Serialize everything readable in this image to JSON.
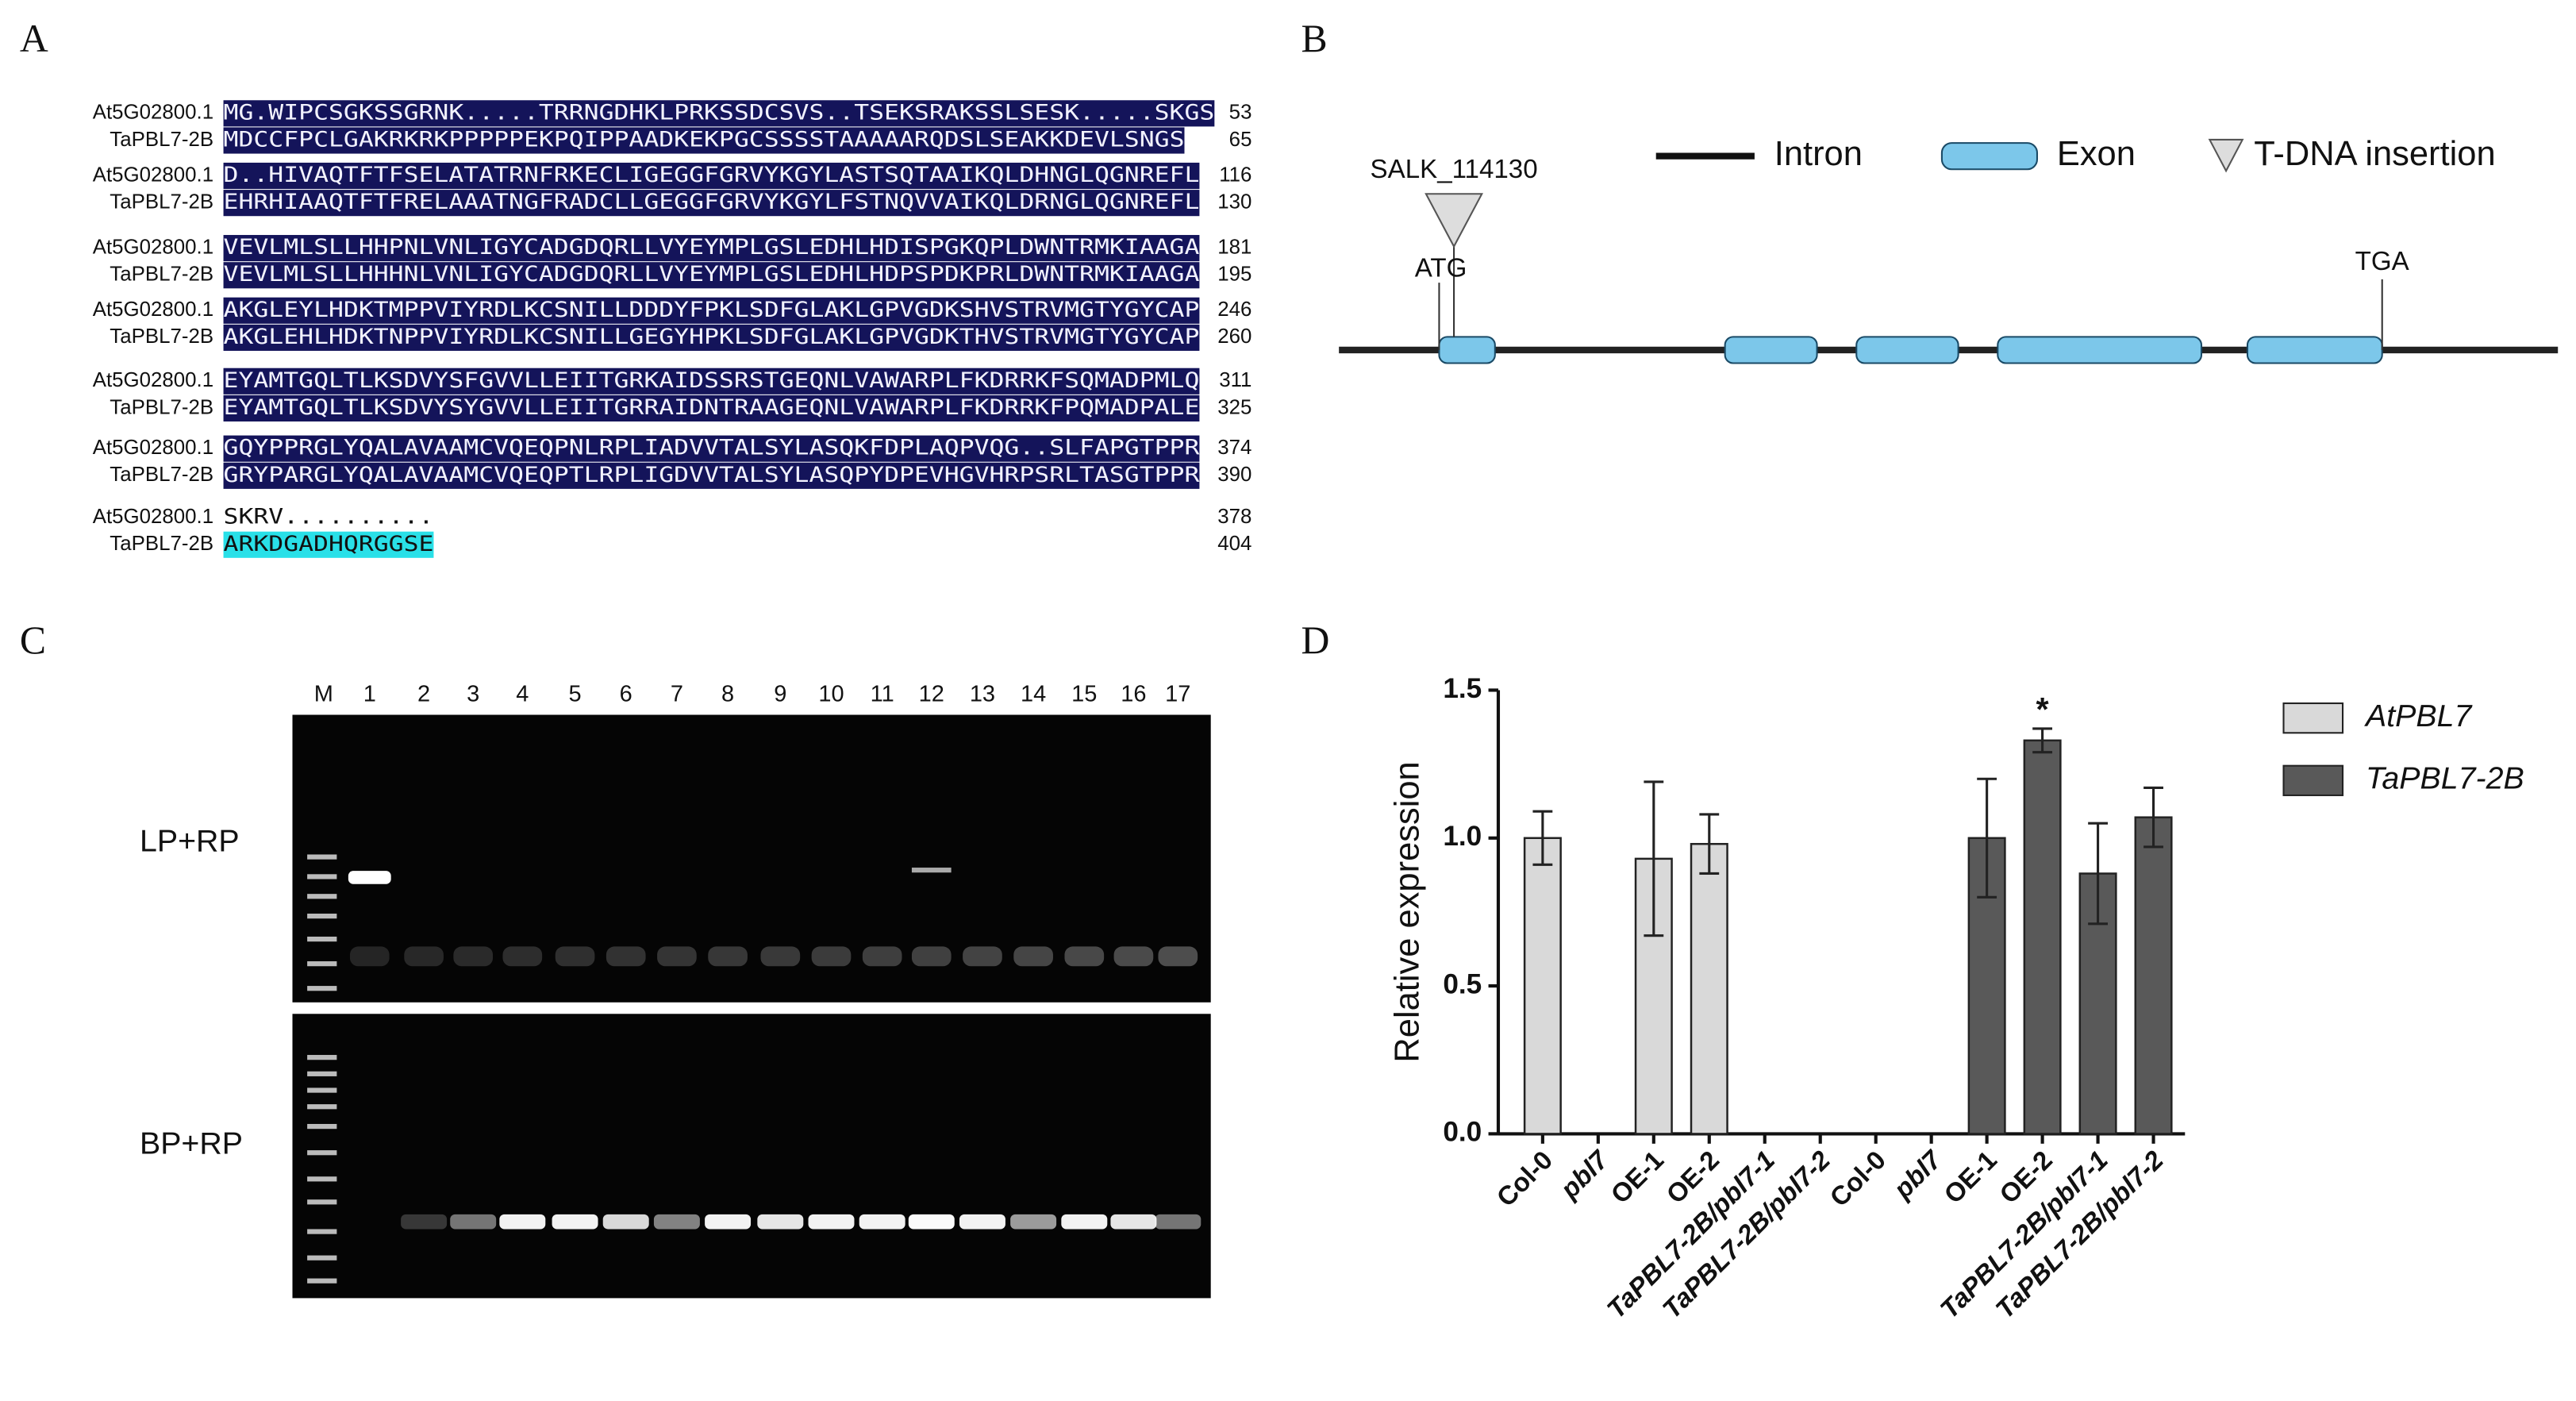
{
  "panels": {
    "a": {
      "label": "A",
      "alignment": {
        "blocks": [
          {
            "rows": [
              {
                "name": "At5G02800.1",
                "sequence": "MG.WIPCSGKSSGRNK.....TRRNGDHKLPRKSSDCSVS..TSEKSRAKSSLSESK.....SKGS",
                "end": "53"
              },
              {
                "name": "TaPBL7-2B",
                "sequence": "MDCCFPCLGAKRKRKPPPPPEKPQIPPAADKEKPGCSSSSTAAAAARQDSLSEAKKDEVLSNGS",
                "end": "65"
              }
            ]
          },
          {
            "rows": [
              {
                "name": "At5G02800.1",
                "sequence": "D..HIVAQTFTFSELATATRNFRKECLIGEGGFGRVYKGYLASTSQTAAIKQLDHNGLQGNREFL",
                "end": "116"
              },
              {
                "name": "TaPBL7-2B",
                "sequence": "EHRHIAAQTFTFRELAAATNGFRADCLLGEGGFGRVYKGYLFSTNQVVAIKQLDRNGLQGNREFL",
                "end": "130"
              }
            ]
          },
          {
            "rows": [
              {
                "name": "At5G02800.1",
                "sequence": "VEVLMLSLLHHPNLVNLIGYCADGDQRLLVYEYMPLGSLEDHLHDISPGKQPLDWNTRMKIAAGA",
                "end": "181"
              },
              {
                "name": "TaPBL7-2B",
                "sequence": "VEVLMLSLLHHHNLVNLIGYCADGDQRLLVYEYMPLGSLEDHLHDPSPDKPRLDWNTRMKIAAGA",
                "end": "195"
              }
            ]
          },
          {
            "rows": [
              {
                "name": "At5G02800.1",
                "sequence": "AKGLEYLHDKTMPPVIYRDLKCSNILLDDDYFPKLSDFGLAKLGPVGDKSHVSTRVMGTYGYCAP",
                "end": "246"
              },
              {
                "name": "TaPBL7-2B",
                "sequence": "AKGLEHLHDKTNPPVIYRDLKCSNILLGEGYHPKLSDFGLAKLGPVGDKTHVSTRVMGTYGYCAP",
                "end": "260"
              }
            ]
          },
          {
            "rows": [
              {
                "name": "At5G02800.1",
                "sequence": "EYAMTGQLTLKSDVYSFGVVLLEIITGRKAIDSSRSTGEQNLVAWARPLFKDRRKFSQMADPMLQ",
                "end": "311"
              },
              {
                "name": "TaPBL7-2B",
                "sequence": "EYAMTGQLTLKSDVYSYGVVLLEIITGRRAIDNTRAAGEQNLVAWARPLFKDRRKFPQMADPALE",
                "end": "325"
              }
            ]
          },
          {
            "rows": [
              {
                "name": "At5G02800.1",
                "sequence": "GQYPPRGLYQALAVAAMCVQEQPNLRPLIADVVTALSYLASQKFDPLAQPVQG..SLFAPGTPPR",
                "end": "374"
              },
              {
                "name": "TaPBL7-2B",
                "sequence": "GRYPARGLYQALAVAAMCVQEQPTLRPLIGDVVTALSYLASQPYDPEVHGVHRPSRLTASGTPPR",
                "end": "390"
              }
            ]
          },
          {
            "rows": [
              {
                "name": "At5G02800.1",
                "sequence": "SKRV..........",
                "end": "378"
              },
              {
                "name": "TaPBL7-2B",
                "sequence": "ARKDGADHQRGGSE",
                "end": "404"
              }
            ]
          }
        ]
      }
    },
    "b": {
      "label": "B",
      "insertion": "SALK_114130",
      "start_codon": "ATG",
      "stop_codon": "TGA",
      "legend": {
        "intron": "Intron",
        "exon": "Exon",
        "insertion": "T-DNA insertion"
      }
    },
    "c": {
      "label": "C",
      "lanes": [
        "M",
        "1",
        "2",
        "3",
        "4",
        "5",
        "6",
        "7",
        "8",
        "9",
        "10",
        "11",
        "12",
        "13",
        "14",
        "15",
        "16",
        "17"
      ],
      "gels": [
        "LP+RP",
        "BP+RP"
      ]
    },
    "d": {
      "label": "D"
    }
  },
  "chart_data": {
    "type": "bar",
    "y_label": "Relative expression",
    "annotation": "*",
    "categories": [
      "Col-0",
      "pbl7",
      "OE-1",
      "OE-2",
      "TaPBL7-2B/pbl7-1",
      "TaPBL7-2B/pbl7-2",
      "Col-0",
      "pbl7",
      "OE-1",
      "OE-2",
      "TaPBL7-2B/pbl7-1",
      "TaPBL7-2B/pbl7-2"
    ],
    "series": [
      {
        "name": "AtPBL7",
        "color": "#d9d9d9",
        "values": [
          1.0,
          0,
          0.93,
          0.98,
          0,
          0,
          null,
          null,
          null,
          null,
          null,
          null
        ],
        "errors": [
          0.09,
          0,
          0.26,
          0.1,
          0,
          0,
          null,
          null,
          null,
          null,
          null,
          null
        ]
      },
      {
        "name": "TaPBL7-2B",
        "color": "#595959",
        "values": [
          null,
          null,
          null,
          null,
          null,
          null,
          0,
          0,
          1.0,
          1.33,
          0.88,
          1.07
        ],
        "errors": [
          null,
          null,
          null,
          null,
          null,
          null,
          0,
          0,
          0.2,
          0.04,
          0.17,
          0.1
        ]
      }
    ],
    "ylim": [
      0,
      1.5
    ],
    "yticks": [
      {
        "value": 0,
        "label": "0.0"
      },
      0.5,
      {
        "value": 1,
        "label": "1.0"
      },
      1.5
    ]
  }
}
